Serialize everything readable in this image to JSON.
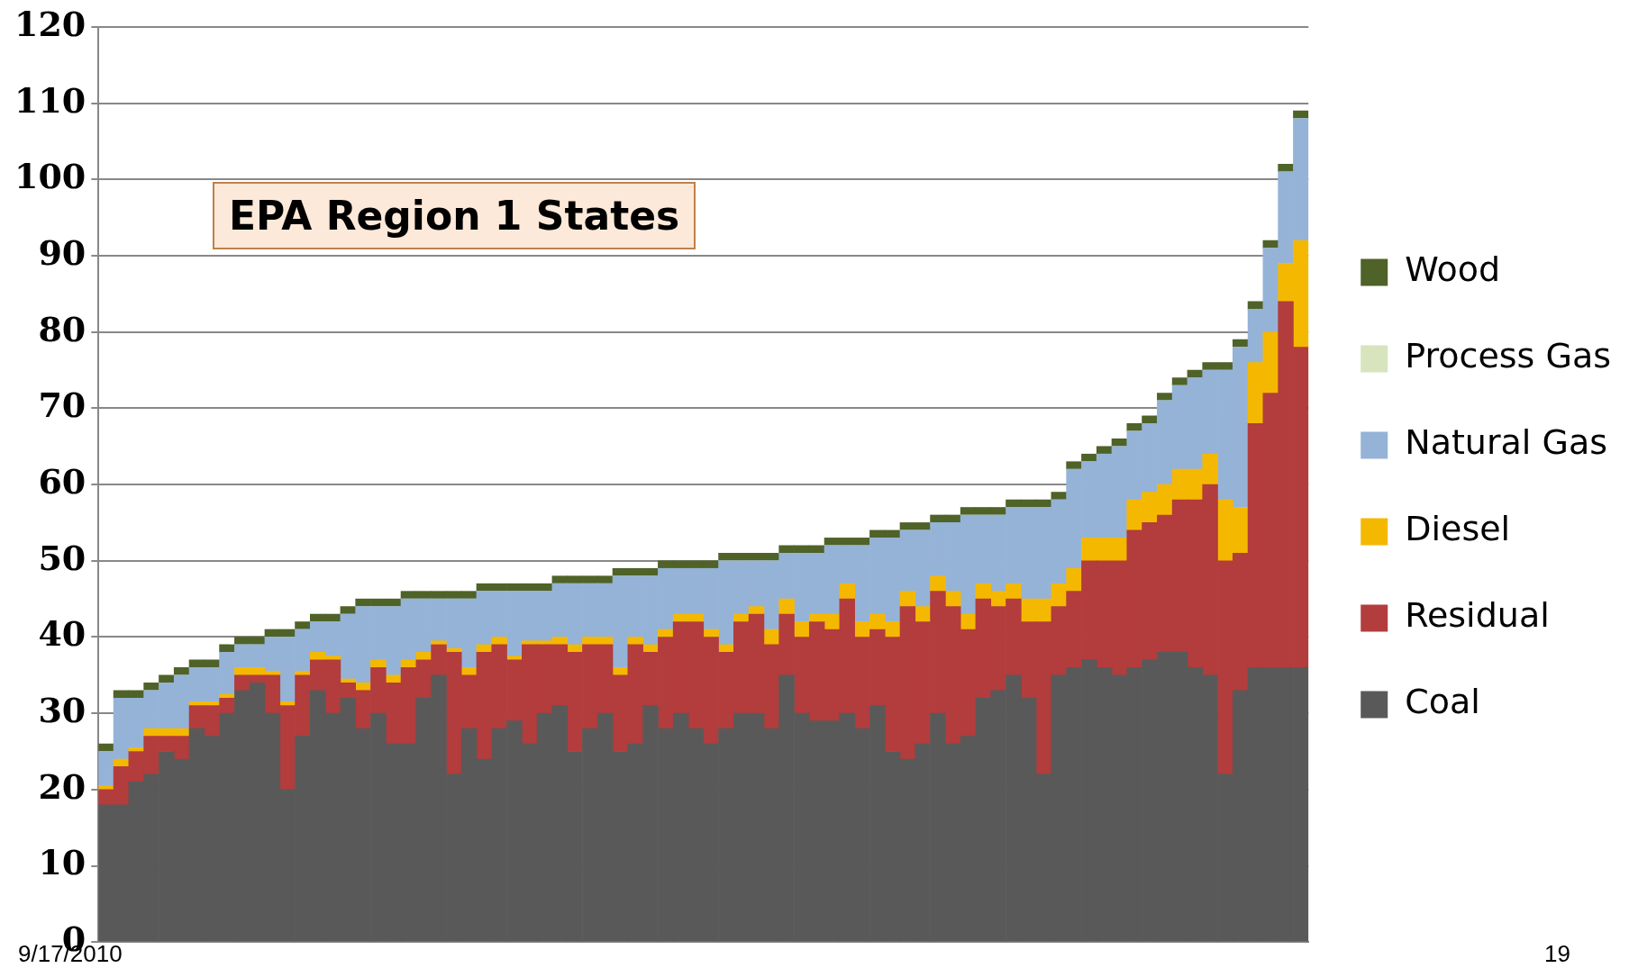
{
  "chart_data": {
    "type": "bar",
    "title": "EPA Region 1 States",
    "stacked": true,
    "grid": "y",
    "legend": "right",
    "ylim": [
      0,
      120
    ],
    "yticks": [
      0,
      10,
      20,
      30,
      40,
      50,
      60,
      70,
      80,
      90,
      100,
      110,
      120
    ],
    "annotations": [
      "9/17/2010",
      "19"
    ],
    "categories": [
      null,
      null,
      null,
      null,
      null,
      null,
      null,
      null,
      null,
      null,
      null,
      null,
      null,
      null,
      null,
      null,
      null,
      null,
      null,
      null,
      null,
      null,
      null,
      null,
      null,
      null,
      null,
      null,
      null,
      null,
      null,
      null,
      null,
      null,
      null,
      null,
      null,
      null,
      null,
      null,
      null,
      null,
      null,
      null,
      null,
      null,
      null,
      null,
      null,
      null,
      null,
      null,
      null,
      null,
      null,
      null,
      null,
      null,
      null,
      null,
      null,
      null,
      null,
      null,
      null,
      null,
      null,
      null,
      null,
      null,
      null,
      null,
      null,
      null,
      null,
      null,
      null,
      null,
      null,
      null
    ],
    "series": [
      {
        "name": "Coal",
        "color": "#595959",
        "values": [
          18,
          18,
          21,
          22,
          25,
          24,
          28,
          27,
          30,
          33,
          34,
          30,
          20,
          27,
          33,
          30,
          32,
          28,
          30,
          26,
          26,
          32,
          35,
          22,
          28,
          24,
          28,
          29,
          26,
          30,
          31,
          25,
          28,
          30,
          25,
          26,
          31,
          28,
          30,
          28,
          26,
          28,
          30,
          30,
          28,
          35,
          30,
          29,
          29,
          30,
          28,
          31,
          25,
          24,
          26,
          30,
          26,
          27,
          32,
          33,
          35,
          32,
          22,
          35,
          36,
          37,
          36,
          35,
          36,
          37,
          38,
          38,
          36,
          35,
          22,
          33,
          36,
          36,
          36,
          36
        ]
      },
      {
        "name": "Residual",
        "color": "#b33c3c",
        "values": [
          2,
          5,
          4,
          5,
          2,
          3,
          3,
          4,
          2,
          2,
          1,
          5,
          11,
          8,
          4,
          7,
          2,
          5,
          6,
          8,
          10,
          5,
          4,
          16,
          7,
          14,
          11,
          8,
          13,
          9,
          8,
          13,
          11,
          9,
          10,
          13,
          7,
          12,
          12,
          14,
          14,
          10,
          12,
          13,
          11,
          8,
          10,
          13,
          12,
          15,
          12,
          10,
          15,
          20,
          16,
          16,
          18,
          14,
          13,
          11,
          10,
          10,
          20,
          9,
          10,
          13,
          14,
          15,
          18,
          18,
          18,
          20,
          22,
          25,
          28,
          18,
          32,
          36,
          48,
          42
        ]
      },
      {
        "name": "Diesel",
        "color": "#f5b800",
        "values": [
          0.5,
          1,
          0.5,
          1,
          1,
          1,
          0.5,
          0.5,
          0.5,
          1,
          1,
          0.5,
          0.5,
          0.5,
          1,
          0.5,
          0.5,
          1,
          1,
          1,
          1,
          1,
          0.5,
          0.5,
          1,
          1,
          1,
          0.5,
          0.5,
          0.5,
          1,
          1,
          1,
          1,
          1,
          1,
          1,
          1,
          1,
          1,
          1,
          1,
          1,
          1,
          2,
          2,
          2,
          1,
          2,
          2,
          2,
          2,
          2,
          2,
          2,
          2,
          2,
          2,
          2,
          2,
          2,
          3,
          3,
          3,
          3,
          3,
          3,
          3,
          4,
          4,
          4,
          4,
          4,
          4,
          8,
          6,
          8,
          8,
          5,
          14
        ]
      },
      {
        "name": "Natural Gas",
        "color": "#95b3d7",
        "values": [
          4.5,
          8,
          6.5,
          5,
          6,
          7,
          4.5,
          4.5,
          5.5,
          3,
          3,
          4.5,
          8.5,
          5.5,
          4,
          4.5,
          8.5,
          10,
          7,
          9,
          8,
          7,
          5.5,
          6.5,
          9,
          7,
          6,
          8.5,
          6.5,
          6.5,
          7,
          8,
          7,
          7,
          12,
          8,
          9,
          8,
          6,
          6,
          8,
          11,
          7,
          6,
          9,
          6,
          9,
          8,
          9,
          5,
          10,
          10,
          11,
          8,
          10,
          7,
          9,
          13,
          9,
          10,
          10,
          12,
          12,
          11,
          13,
          10,
          11,
          12,
          9,
          9,
          11,
          11,
          12,
          11,
          17,
          21,
          7,
          11,
          12,
          16
        ]
      },
      {
        "name": "Process Gas",
        "color": "#d7e4bd",
        "values": [
          0,
          0,
          0,
          0,
          0,
          0,
          0,
          0,
          0,
          0,
          0,
          0,
          0,
          0,
          0,
          0,
          0,
          0,
          0,
          0,
          0,
          0,
          0,
          0,
          0,
          0,
          0,
          0,
          0,
          0,
          0,
          0,
          0,
          0,
          0,
          0,
          0,
          0,
          0,
          0,
          0,
          0,
          0,
          0,
          0,
          0,
          0,
          0,
          0,
          0,
          0,
          0,
          0,
          0,
          0,
          0,
          0,
          0,
          0,
          0,
          0,
          0,
          0,
          0,
          0,
          0,
          0,
          0,
          0,
          0,
          0,
          0,
          0,
          0,
          0,
          0,
          0,
          0,
          0,
          0
        ]
      },
      {
        "name": "Wood",
        "color": "#4f6228",
        "values": [
          1,
          1,
          1,
          1,
          1,
          1,
          1,
          1,
          1,
          1,
          1,
          1,
          1,
          1,
          1,
          1,
          1,
          1,
          1,
          1,
          1,
          1,
          1,
          1,
          1,
          1,
          1,
          1,
          1,
          1,
          1,
          1,
          1,
          1,
          1,
          1,
          1,
          1,
          1,
          1,
          1,
          1,
          1,
          1,
          1,
          1,
          1,
          1,
          1,
          1,
          1,
          1,
          1,
          1,
          1,
          1,
          1,
          1,
          1,
          1,
          1,
          1,
          1,
          1,
          1,
          1,
          1,
          1,
          1,
          1,
          1,
          1,
          1,
          1,
          1,
          1,
          1,
          1,
          1,
          1
        ]
      }
    ]
  }
}
